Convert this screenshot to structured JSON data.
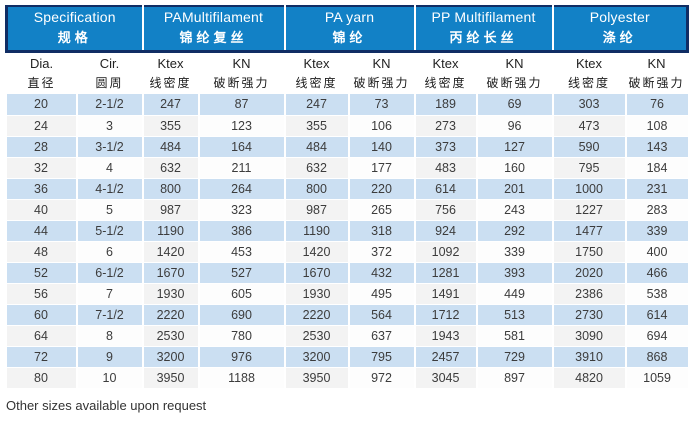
{
  "table": {
    "groups": [
      {
        "en": "Specification",
        "zh": "规格"
      },
      {
        "en": "PAMultifilament",
        "zh": "锦纶复丝"
      },
      {
        "en": "PA yarn",
        "zh": "锦纶"
      },
      {
        "en": "PP Multifilament",
        "zh": "丙纶长丝"
      },
      {
        "en": "Polyester",
        "zh": "涤纶"
      }
    ],
    "columns": [
      {
        "en": "Dia.",
        "zh": "直径"
      },
      {
        "en": "Cir.",
        "zh": "圆周"
      },
      {
        "en": "Ktex",
        "zh": "线密度"
      },
      {
        "en": "KN",
        "zh": "破断强力"
      },
      {
        "en": "Ktex",
        "zh": "线密度"
      },
      {
        "en": "KN",
        "zh": "破断强力"
      },
      {
        "en": "Ktex",
        "zh": "线密度"
      },
      {
        "en": "KN",
        "zh": "破断强力"
      },
      {
        "en": "Ktex",
        "zh": "线密度"
      },
      {
        "en": "KN",
        "zh": "破断强力"
      }
    ],
    "rows": [
      [
        "20",
        "2-1/2",
        "247",
        "87",
        "247",
        "73",
        "189",
        "69",
        "303",
        "76"
      ],
      [
        "24",
        "3",
        "355",
        "123",
        "355",
        "106",
        "273",
        "96",
        "473",
        "108"
      ],
      [
        "28",
        "3-1/2",
        "484",
        "164",
        "484",
        "140",
        "373",
        "127",
        "590",
        "143"
      ],
      [
        "32",
        "4",
        "632",
        "211",
        "632",
        "177",
        "483",
        "160",
        "795",
        "184"
      ],
      [
        "36",
        "4-1/2",
        "800",
        "264",
        "800",
        "220",
        "614",
        "201",
        "1000",
        "231"
      ],
      [
        "40",
        "5",
        "987",
        "323",
        "987",
        "265",
        "756",
        "243",
        "1227",
        "283"
      ],
      [
        "44",
        "5-1/2",
        "1190",
        "386",
        "1190",
        "318",
        "924",
        "292",
        "1477",
        "339"
      ],
      [
        "48",
        "6",
        "1420",
        "453",
        "1420",
        "372",
        "1092",
        "339",
        "1750",
        "400"
      ],
      [
        "52",
        "6-1/2",
        "1670",
        "527",
        "1670",
        "432",
        "1281",
        "393",
        "2020",
        "466"
      ],
      [
        "56",
        "7",
        "1930",
        "605",
        "1930",
        "495",
        "1491",
        "449",
        "2386",
        "538"
      ],
      [
        "60",
        "7-1/2",
        "2220",
        "690",
        "2220",
        "564",
        "1712",
        "513",
        "2730",
        "614"
      ],
      [
        "64",
        "8",
        "2530",
        "780",
        "2530",
        "637",
        "1943",
        "581",
        "3090",
        "694"
      ],
      [
        "72",
        "9",
        "3200",
        "976",
        "3200",
        "795",
        "2457",
        "729",
        "3910",
        "868"
      ],
      [
        "80",
        "10",
        "3950",
        "1188",
        "3950",
        "972",
        "3045",
        "897",
        "4820",
        "1059"
      ]
    ]
  },
  "footer": {
    "note": "Other sizes available upon request"
  },
  "colors": {
    "header_blue": "#1281c6",
    "header_border_navy": "#102d64",
    "row_blue": "#cbdff2",
    "row_alt_tint": "#f3f3f3",
    "header_text": "#ffffff",
    "body_text": "#3c3c3c"
  }
}
